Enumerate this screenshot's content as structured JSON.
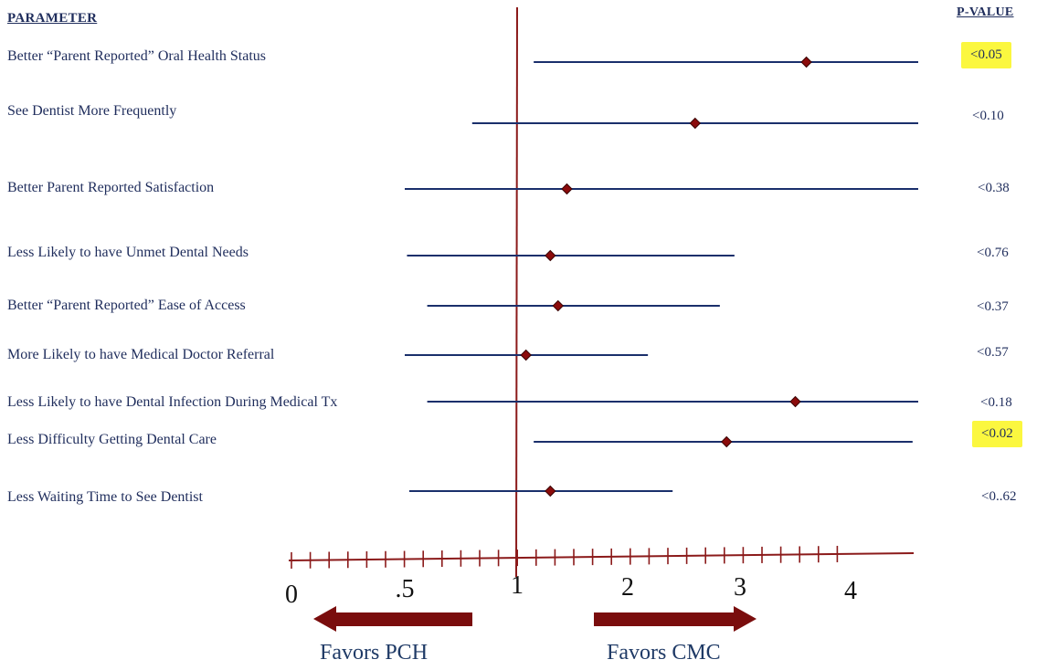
{
  "chart_data": {
    "type": "forest",
    "header_parameter": "PARAMETER",
    "header_pvalue": "P-VALUE",
    "tick_labels": [
      "0",
      ".5",
      "1",
      "2",
      "3",
      "4"
    ],
    "reference_value": 1,
    "rows": [
      {
        "parameter": "Better “Parent Reported” Oral Health Status",
        "estimate": 3.6,
        "ci_low": 1.15,
        "ci_high": 4.6,
        "p_value": "<0.05",
        "highlight": true
      },
      {
        "parameter": "See Dentist More Frequently",
        "estimate": 2.6,
        "ci_low": 0.8,
        "ci_high": 4.6,
        "p_value": "<0.10",
        "highlight": false
      },
      {
        "parameter": "Better Parent Reported Satisfaction",
        "estimate": 1.45,
        "ci_low": 0.5,
        "ci_high": 4.6,
        "p_value": "<0.38",
        "highlight": false
      },
      {
        "parameter": "Less Likely to have Unmet Dental Needs",
        "estimate": 1.3,
        "ci_low": 0.51,
        "ci_high": 2.95,
        "p_value": "<0.76",
        "highlight": false
      },
      {
        "parameter": "Better “Parent Reported” Ease of Access",
        "estimate": 1.37,
        "ci_low": 0.6,
        "ci_high": 2.82,
        "p_value": "<0.37",
        "highlight": false
      },
      {
        "parameter": "More Likely to have Medical Doctor Referral",
        "estimate": 1.08,
        "ci_low": 0.5,
        "ci_high": 2.18,
        "p_value": "<0.57",
        "highlight": false
      },
      {
        "parameter": "Less Likely to have Dental Infection During Medical Tx",
        "estimate": 3.5,
        "ci_low": 0.6,
        "ci_high": 4.6,
        "p_value": "<0.18",
        "highlight": false
      },
      {
        "parameter": "Less Difficulty Getting Dental Care",
        "estimate": 2.88,
        "ci_low": 1.15,
        "ci_high": 4.55,
        "p_value": "<0.02",
        "highlight": true
      },
      {
        "parameter": "Less Waiting Time to See Dentist",
        "estimate": 1.3,
        "ci_low": 0.52,
        "ci_high": 2.4,
        "p_value": "<0..62",
        "highlight": false
      }
    ],
    "favors_left": "Favors PCH",
    "favors_right": "Favors CMC"
  },
  "colors": {
    "ci_line": "#1a2f6b",
    "marker": "#8b0b0b",
    "axis": "#8b1a1a",
    "text": "#1f2d5c",
    "highlight": "#fbf73f",
    "arrow": "#7a0d0d"
  }
}
